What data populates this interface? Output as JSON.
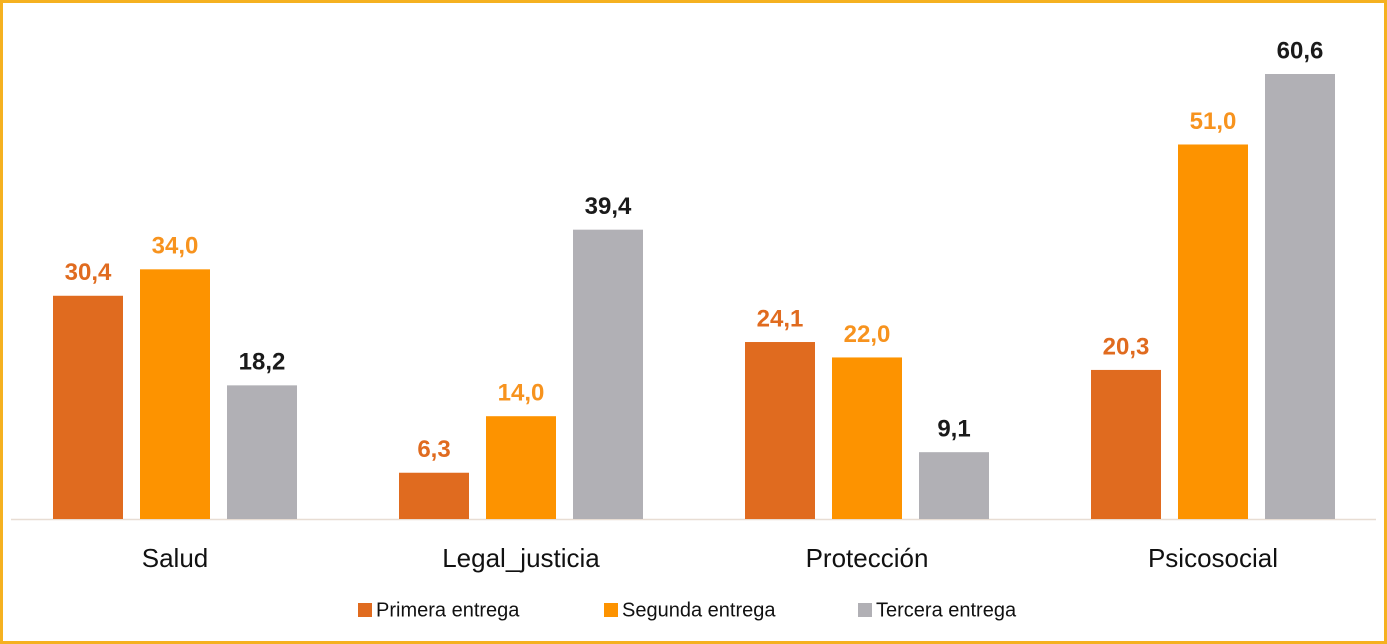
{
  "chart_data": {
    "type": "bar",
    "categories": [
      "Salud",
      "Legal_justicia",
      "Protección",
      "Psicosocial"
    ],
    "series": [
      {
        "name": "Primera entrega",
        "color": "#e06b1f",
        "label_color": "#e06b1f",
        "values": [
          30.4,
          6.3,
          24.1,
          20.3
        ],
        "value_labels": [
          "30,4",
          "6,3",
          "24,1",
          "20,3"
        ]
      },
      {
        "name": "Segunda entrega",
        "color": "#fd9300",
        "label_color": "#f7931e",
        "values": [
          34.0,
          14.0,
          22.0,
          51.0
        ],
        "value_labels": [
          "34,0",
          "14,0",
          "22,0",
          "51,0"
        ]
      },
      {
        "name": "Tercera entrega",
        "color": "#b1b0b5",
        "label_color": "#1a1a1a",
        "values": [
          18.2,
          39.4,
          9.1,
          60.6
        ],
        "value_labels": [
          "18,2",
          "39,4",
          "9,1",
          "60,6"
        ]
      }
    ],
    "legend": "bottom"
  }
}
